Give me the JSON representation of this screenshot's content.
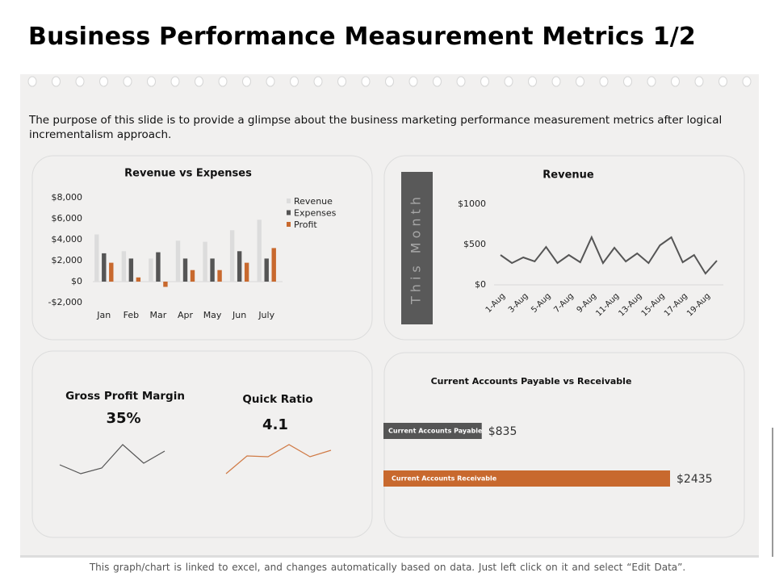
{
  "title": "Business Performance Measurement Metrics 1/2",
  "description": "The purpose of this slide is to provide a glimpse about the business marketing performance measurement metrics after logical incrementalism approach.",
  "footer": "This graph/chart is linked to excel, and changes automatically  based on data. Just left click on it and select “Edit Data”.",
  "chart_data": [
    {
      "type": "bar",
      "title": "Revenue vs Expenses",
      "categories": [
        "Jan",
        "Feb",
        "Mar",
        "Apr",
        "May",
        "Jun",
        "July"
      ],
      "series": [
        {
          "name": "Revenue",
          "color": "#dcdcdc",
          "values": [
            4500,
            2900,
            2200,
            3900,
            3800,
            4900,
            5900
          ]
        },
        {
          "name": "Expenses",
          "color": "#555555",
          "values": [
            2700,
            2200,
            2800,
            2200,
            2200,
            2900,
            2200
          ]
        },
        {
          "name": "Profit",
          "color": "#c8692e",
          "values": [
            1800,
            400,
            -500,
            1100,
            1100,
            1800,
            3200
          ]
        }
      ],
      "ylim": [
        -2000,
        8000
      ],
      "yticks": [
        {
          "value": -2000,
          "label": "-$2,000"
        },
        {
          "value": 0,
          "label": "$0"
        },
        {
          "value": 2000,
          "label": "$2,000"
        },
        {
          "value": 4000,
          "label": "$4,000"
        },
        {
          "value": 6000,
          "label": "$6,000"
        },
        {
          "value": 8000,
          "label": "$8,000"
        }
      ],
      "legend": "top-right"
    },
    {
      "type": "line",
      "title": "Revenue",
      "side_label": "This Month",
      "color": "#555555",
      "categories": [
        "1-Aug",
        null,
        "3-Aug",
        null,
        "5-Aug",
        null,
        "7-Aug",
        null,
        "9-Aug",
        null,
        "11-Aug",
        null,
        "13-Aug",
        null,
        "15-Aug",
        null,
        "17-Aug",
        null,
        "19-Aug",
        null
      ],
      "values": [
        370,
        270,
        340,
        290,
        470,
        270,
        370,
        280,
        590,
        270,
        460,
        290,
        390,
        270,
        490,
        590,
        280,
        370,
        140,
        300
      ],
      "ylim": [
        0,
        1000
      ],
      "yticks": [
        {
          "value": 0,
          "label": "$0"
        },
        {
          "value": 500,
          "label": "$500"
        },
        {
          "value": 1000,
          "label": "$1000"
        }
      ]
    },
    {
      "type": "sparkline",
      "title": "Gross Profit Margin",
      "value": 35,
      "value_label": "35%",
      "color": "#555555",
      "values": [
        11,
        0,
        7,
        36,
        13,
        28
      ]
    },
    {
      "type": "sparkline",
      "title": "Quick Ratio",
      "value": 4.1,
      "color": "#d07a45",
      "values": [
        0,
        22,
        21,
        36,
        21,
        29
      ]
    },
    {
      "type": "barh",
      "title": "Current Accounts Payable vs Receivable",
      "categories": [
        "Current Accounts Payable",
        "Current Accounts Receivable"
      ],
      "values": [
        835,
        2435
      ],
      "value_labels": [
        "$835",
        "$2435"
      ],
      "colors": [
        "#555555",
        "#c8692e"
      ]
    }
  ]
}
